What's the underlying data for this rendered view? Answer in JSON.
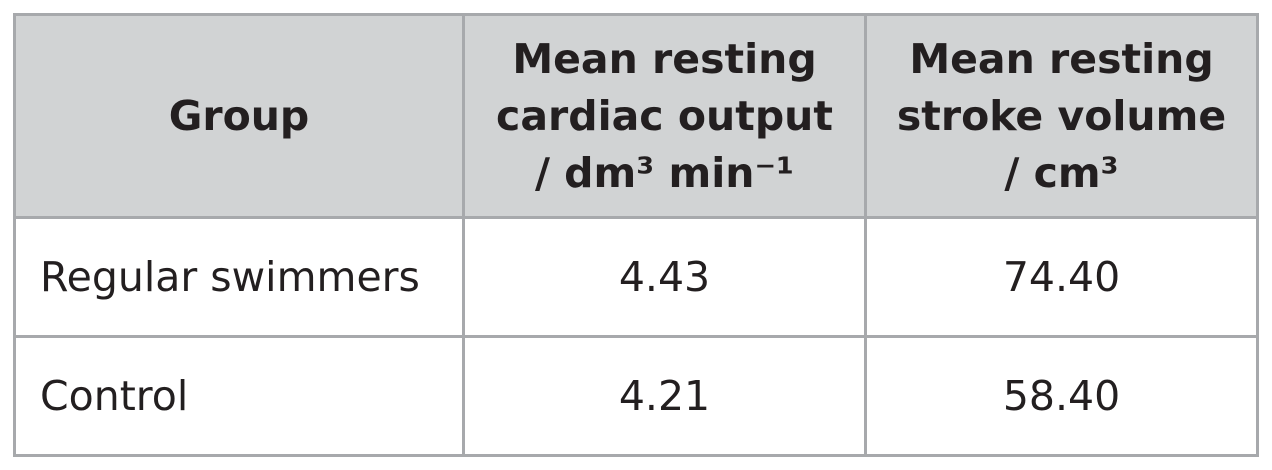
{
  "table": {
    "headers": [
      {
        "lines": [
          "Group"
        ]
      },
      {
        "lines": [
          "Mean resting",
          "cardiac output",
          "/ dm³ min⁻¹"
        ]
      },
      {
        "lines": [
          "Mean resting",
          "stroke volume",
          "/ cm³"
        ]
      }
    ],
    "rows": [
      {
        "group": "Regular swimmers",
        "cardiac_output": "4.43",
        "stroke_volume": "74.40"
      },
      {
        "group": "Control",
        "cardiac_output": "4.21",
        "stroke_volume": "58.40"
      }
    ]
  },
  "colors": {
    "header_background": "#d1d3d4",
    "border": "#a7a9ac",
    "text": "#231f20"
  }
}
